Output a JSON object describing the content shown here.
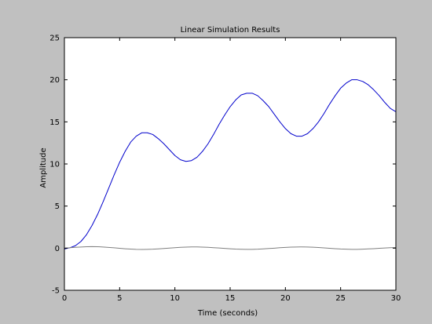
{
  "chart_data": {
    "type": "line",
    "title": "Linear Simulation Results",
    "xlabel": "Time (seconds)",
    "ylabel": "Amplitude",
    "xlim": [
      0,
      30
    ],
    "ylim": [
      -5,
      25
    ],
    "xticks": [
      0,
      5,
      10,
      15,
      20,
      25,
      30
    ],
    "yticks": [
      -5,
      0,
      5,
      10,
      15,
      20,
      25
    ],
    "grid": false,
    "series": [
      {
        "color": "#0000cc",
        "x": [
          0,
          0.5,
          1,
          1.5,
          2,
          2.5,
          3,
          3.5,
          4,
          4.5,
          5,
          5.5,
          6,
          6.5,
          7,
          7.5,
          8,
          8.5,
          9,
          9.5,
          10,
          10.5,
          11,
          11.5,
          12,
          12.5,
          13,
          13.5,
          14,
          14.5,
          15,
          15.5,
          16,
          16.5,
          17,
          17.5,
          18,
          18.5,
          19,
          19.5,
          20,
          20.5,
          21,
          21.5,
          22,
          22.5,
          23,
          23.5,
          24,
          24.5,
          25,
          25.5,
          26,
          26.5,
          27,
          27.5,
          28,
          28.5,
          29,
          29.5,
          30
        ],
        "y": [
          -0.1,
          0.05,
          0.3,
          0.8,
          1.6,
          2.7,
          4.0,
          5.5,
          7.1,
          8.7,
          10.2,
          11.5,
          12.6,
          13.3,
          13.7,
          13.7,
          13.5,
          13.0,
          12.4,
          11.7,
          11.0,
          10.5,
          10.3,
          10.4,
          10.8,
          11.5,
          12.4,
          13.5,
          14.7,
          15.8,
          16.8,
          17.6,
          18.2,
          18.4,
          18.4,
          18.1,
          17.5,
          16.8,
          15.9,
          15.0,
          14.2,
          13.6,
          13.3,
          13.3,
          13.6,
          14.2,
          15.0,
          16.0,
          17.1,
          18.1,
          19.0,
          19.6,
          20.0,
          20.0,
          19.8,
          19.4,
          18.8,
          18.1,
          17.3,
          16.6,
          16.2
        ]
      },
      {
        "color": "#808080",
        "x": [
          0,
          0.5,
          1,
          1.5,
          2,
          2.5,
          3,
          3.5,
          4,
          4.5,
          5,
          5.5,
          6,
          6.5,
          7,
          7.5,
          8,
          8.5,
          9,
          9.5,
          10,
          10.5,
          11,
          11.5,
          12,
          12.5,
          13,
          13.5,
          14,
          14.5,
          15,
          15.5,
          16,
          16.5,
          17,
          17.5,
          18,
          18.5,
          19,
          19.5,
          20,
          20.5,
          21,
          21.5,
          22,
          22.5,
          23,
          23.5,
          24,
          24.5,
          25,
          25.5,
          26,
          26.5,
          27,
          27.5,
          28,
          28.5,
          29,
          29.5,
          30
        ],
        "y": [
          0.0,
          0.05,
          0.1,
          0.14,
          0.17,
          0.18,
          0.17,
          0.14,
          0.09,
          0.04,
          -0.02,
          -0.07,
          -0.11,
          -0.14,
          -0.15,
          -0.14,
          -0.12,
          -0.08,
          -0.04,
          0.01,
          0.06,
          0.1,
          0.13,
          0.15,
          0.15,
          0.13,
          0.1,
          0.06,
          0.02,
          -0.03,
          -0.07,
          -0.11,
          -0.13,
          -0.14,
          -0.14,
          -0.12,
          -0.08,
          -0.04,
          0.0,
          0.05,
          0.09,
          0.12,
          0.14,
          0.15,
          0.14,
          0.11,
          0.08,
          0.03,
          -0.01,
          -0.06,
          -0.1,
          -0.12,
          -0.14,
          -0.14,
          -0.12,
          -0.09,
          -0.06,
          -0.02,
          0.02,
          0.05,
          0.08
        ]
      }
    ]
  }
}
